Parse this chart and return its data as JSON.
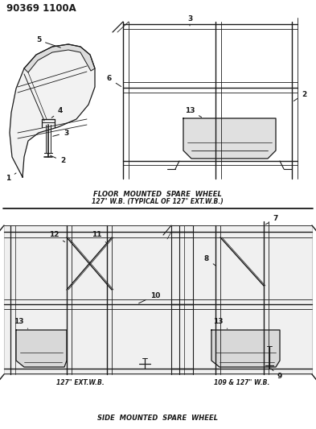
{
  "title": "90369 1100A",
  "bg_color": "#ffffff",
  "line_color": "#1a1a1a",
  "section1_line1": "FLOOR  MOUNTED  SPARE  WHEEL",
  "section1_line2": "127\" W.B. (TYPICAL OF 127\" EXT.W.B.)",
  "section2_title": "SIDE  MOUNTED  SPARE  WHEEL",
  "left_bottom_label": "127\" EXT.W.B.",
  "right_bottom_label": "109 & 127\" W.B.",
  "fig_width": 3.93,
  "fig_height": 5.33,
  "dpi": 100
}
